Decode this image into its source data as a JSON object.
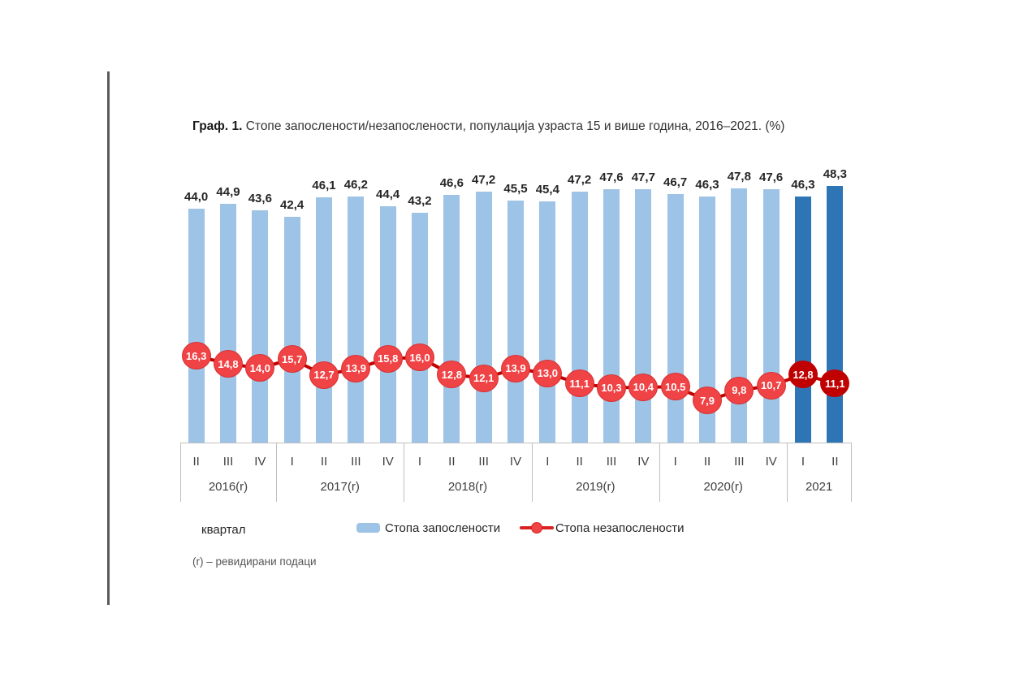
{
  "page": {
    "title_prefix": "Граф. 1.",
    "title_text": " Стопе запослености/незапослености, популација узраста 15 и више година, 2016–2021. (%)",
    "x_axis_caption": "квартал",
    "footnote": "(r) – ревидирани подаци"
  },
  "legend": {
    "employment_label": "Стопа запослености",
    "unemployment_label": "Стопа незапослености"
  },
  "colors": {
    "bar_light_blue": "#9DC3E6",
    "bar_dark_blue": "#2E75B6",
    "marker_red": "#F04345",
    "marker_red_border": "#D83030",
    "marker_dark_red": "#C00000",
    "connector_line": "#C00000",
    "legend_line_red": "#D92121"
  },
  "chart_data": {
    "type": "bar+line",
    "title": "Стопе запослености/незапослености, популација узраста 15 и више година, 2016–2021. (%)",
    "unit": "%",
    "groups": [
      {
        "year": "2016(r)",
        "quarters": [
          "II",
          "III",
          "IV"
        ]
      },
      {
        "year": "2017(r)",
        "quarters": [
          "I",
          "II",
          "III",
          "IV"
        ]
      },
      {
        "year": "2018(r)",
        "quarters": [
          "I",
          "II",
          "III",
          "IV"
        ]
      },
      {
        "year": "2019(r)",
        "quarters": [
          "I",
          "II",
          "III",
          "IV"
        ]
      },
      {
        "year": "2020(r)",
        "quarters": [
          "I",
          "II",
          "III",
          "IV"
        ]
      },
      {
        "year": "2021",
        "quarters": [
          "I",
          "II"
        ]
      }
    ],
    "series": [
      {
        "name": "Стопа запослености",
        "type": "bar",
        "values": [
          44.0,
          44.9,
          43.6,
          42.4,
          46.1,
          46.2,
          44.4,
          43.2,
          46.6,
          47.2,
          45.5,
          45.4,
          47.2,
          47.6,
          47.7,
          46.7,
          46.3,
          47.8,
          47.6,
          46.3,
          48.3
        ]
      },
      {
        "name": "Стопа незапослености",
        "type": "line",
        "values": [
          16.3,
          14.8,
          14.0,
          15.7,
          12.7,
          13.9,
          15.8,
          16.0,
          12.8,
          12.1,
          13.9,
          13.0,
          11.1,
          10.3,
          10.4,
          10.5,
          7.9,
          9.8,
          10.7,
          12.8,
          11.1
        ]
      }
    ],
    "highlight_from_index": 19,
    "decimal_separator": ",",
    "ylim": [
      0,
      55
    ],
    "grid": false,
    "legend_position": "bottom"
  }
}
